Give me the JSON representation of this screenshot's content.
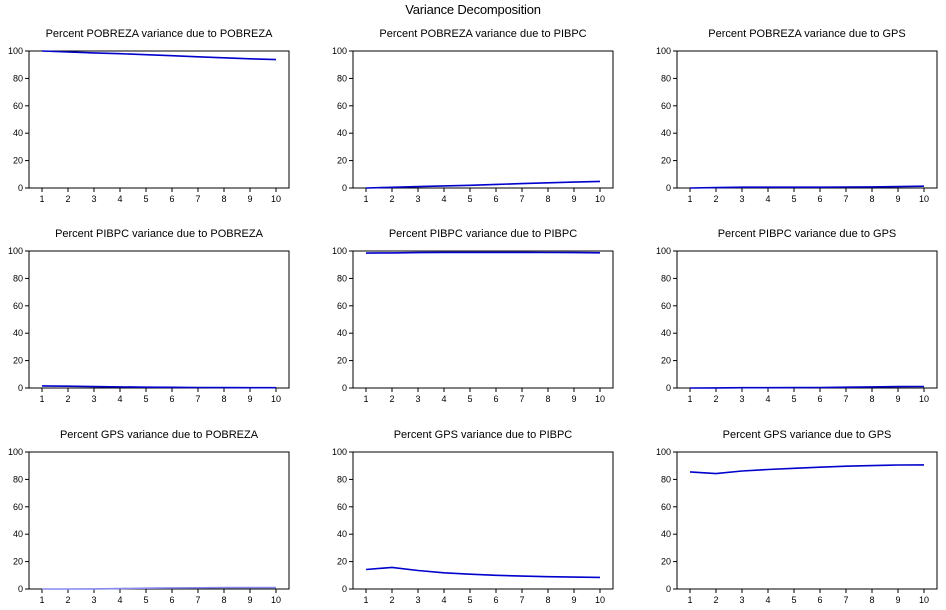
{
  "figure": {
    "title": "Variance Decomposition"
  },
  "chart_data": [
    {
      "type": "line",
      "title": "Percent POBREZA variance due to POBREZA",
      "x": [
        1,
        2,
        3,
        4,
        5,
        6,
        7,
        8,
        9,
        10
      ],
      "ylim": [
        0,
        100
      ],
      "yticks": [
        0,
        20,
        40,
        60,
        80,
        100
      ],
      "series": [
        {
          "values": [
            100,
            99.3,
            98.6,
            98.0,
            97.3,
            96.6,
            95.8,
            95.0,
            94.3,
            93.7
          ],
          "color": "#0000cc"
        }
      ]
    },
    {
      "type": "line",
      "title": "Percent POBREZA variance due to PIBPC",
      "x": [
        1,
        2,
        3,
        4,
        5,
        6,
        7,
        8,
        9,
        10
      ],
      "ylim": [
        0,
        100
      ],
      "yticks": [
        0,
        20,
        40,
        60,
        80,
        100
      ],
      "series": [
        {
          "values": [
            0,
            0.5,
            1.0,
            1.5,
            2.0,
            2.6,
            3.2,
            3.8,
            4.3,
            4.8
          ],
          "color": "#0000cc"
        }
      ]
    },
    {
      "type": "line",
      "title": "Percent POBREZA variance due to GPS",
      "x": [
        1,
        2,
        3,
        4,
        5,
        6,
        7,
        8,
        9,
        10
      ],
      "ylim": [
        0,
        100
      ],
      "yticks": [
        0,
        20,
        40,
        60,
        80,
        100
      ],
      "series": [
        {
          "values": [
            0,
            0.3,
            0.6,
            0.6,
            0.6,
            0.6,
            0.7,
            0.8,
            1.0,
            1.3
          ],
          "color": "#0000cc"
        }
      ]
    },
    {
      "type": "line",
      "title": "Percent PIBPC variance due to POBREZA",
      "x": [
        1,
        2,
        3,
        4,
        5,
        6,
        7,
        8,
        9,
        10
      ],
      "ylim": [
        0,
        100
      ],
      "yticks": [
        0,
        20,
        40,
        60,
        80,
        100
      ],
      "series": [
        {
          "values": [
            1.5,
            1.3,
            1.0,
            0.8,
            0.6,
            0.5,
            0.4,
            0.3,
            0.2,
            0.2
          ],
          "color": "#0000cc"
        }
      ]
    },
    {
      "type": "line",
      "title": "Percent PIBPC variance due to PIBPC",
      "x": [
        1,
        2,
        3,
        4,
        5,
        6,
        7,
        8,
        9,
        10
      ],
      "ylim": [
        0,
        100
      ],
      "yticks": [
        0,
        20,
        40,
        60,
        80,
        100
      ],
      "series": [
        {
          "values": [
            98.5,
            98.6,
            98.8,
            99.0,
            99.0,
            99.0,
            99.0,
            98.9,
            98.8,
            98.7
          ],
          "color": "#0000cc"
        }
      ]
    },
    {
      "type": "line",
      "title": "Percent PIBPC variance due to GPS",
      "x": [
        1,
        2,
        3,
        4,
        5,
        6,
        7,
        8,
        9,
        10
      ],
      "ylim": [
        0,
        100
      ],
      "yticks": [
        0,
        20,
        40,
        60,
        80,
        100
      ],
      "series": [
        {
          "values": [
            0,
            0.1,
            0.2,
            0.2,
            0.3,
            0.4,
            0.6,
            0.8,
            1.0,
            1.1
          ],
          "color": "#0000cc"
        }
      ]
    },
    {
      "type": "line",
      "title": "Percent GPS variance due to POBREZA",
      "x": [
        1,
        2,
        3,
        4,
        5,
        6,
        7,
        8,
        9,
        10
      ],
      "ylim": [
        0,
        100
      ],
      "yticks": [
        0,
        20,
        40,
        60,
        80,
        100
      ],
      "series": [
        {
          "values": [
            0,
            0,
            0.1,
            0.3,
            0.6,
            0.8,
            0.9,
            1.0,
            1.0,
            1.0
          ],
          "color": "#8888ee"
        }
      ]
    },
    {
      "type": "line",
      "title": "Percent GPS variance due to PIBPC",
      "x": [
        1,
        2,
        3,
        4,
        5,
        6,
        7,
        8,
        9,
        10
      ],
      "ylim": [
        0,
        100
      ],
      "yticks": [
        0,
        20,
        40,
        60,
        80,
        100
      ],
      "series": [
        {
          "values": [
            14.2,
            15.8,
            13.5,
            11.8,
            10.8,
            10.0,
            9.4,
            9.0,
            8.7,
            8.5
          ],
          "color": "#0000cc"
        }
      ]
    },
    {
      "type": "line",
      "title": "Percent GPS variance due to GPS",
      "x": [
        1,
        2,
        3,
        4,
        5,
        6,
        7,
        8,
        9,
        10
      ],
      "ylim": [
        0,
        100
      ],
      "yticks": [
        0,
        20,
        40,
        60,
        80,
        100
      ],
      "series": [
        {
          "values": [
            85.5,
            84.2,
            86.1,
            87.2,
            88.1,
            88.9,
            89.6,
            90.1,
            90.5,
            90.6
          ],
          "color": "#0000cc"
        }
      ]
    }
  ]
}
